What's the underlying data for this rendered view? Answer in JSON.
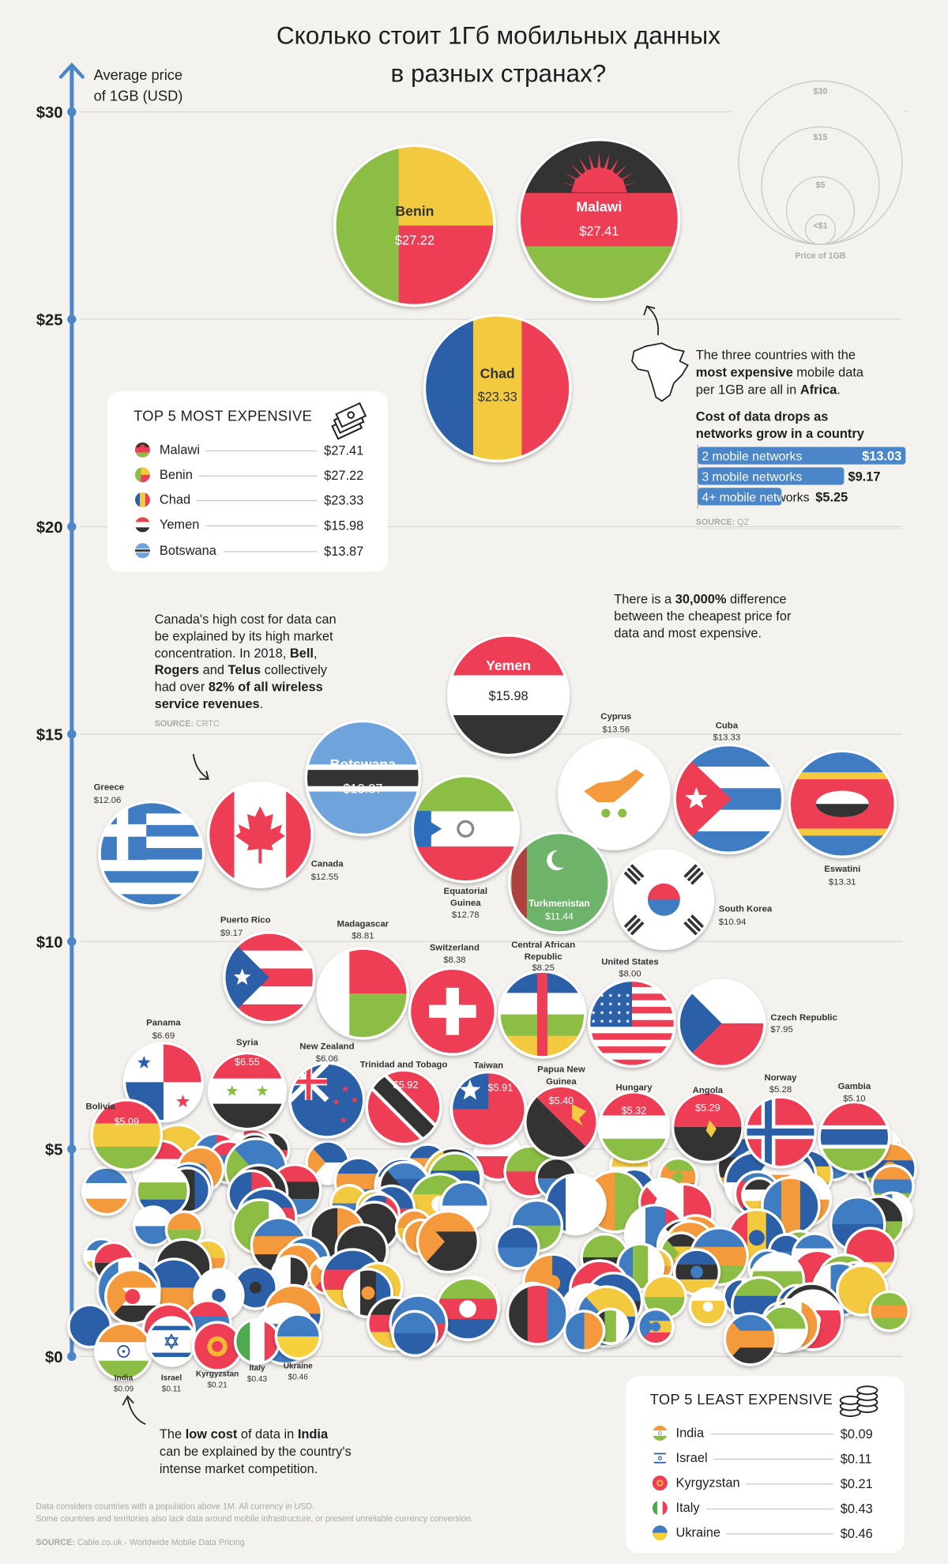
{
  "title_lines": [
    "Сколько стоит 1Гб мобильных данных",
    "в разных странах?"
  ],
  "axis": {
    "label_lines": [
      "Average price",
      "of 1GB (USD)"
    ],
    "ticks": [
      "$30",
      "$25",
      "$20",
      "$15",
      "$10",
      "$5",
      "$0"
    ]
  },
  "size_legend": {
    "labels": [
      "$30",
      "$15",
      "$5",
      "<$1"
    ],
    "caption": "Price of 1GB"
  },
  "top_expensive": {
    "title": "TOP 5 MOST EXPENSIVE",
    "rows": [
      {
        "country": "Malawi",
        "price": "$27.41",
        "flag": "malawi"
      },
      {
        "country": "Benin",
        "price": "$27.22",
        "flag": "benin"
      },
      {
        "country": "Chad",
        "price": "$23.33",
        "flag": "chad"
      },
      {
        "country": "Yemen",
        "price": "$15.98",
        "flag": "yemen"
      },
      {
        "country": "Botswana",
        "price": "$13.87",
        "flag": "botswana"
      }
    ]
  },
  "top_cheapest": {
    "title": "TOP 5 LEAST EXPENSIVE",
    "rows": [
      {
        "country": "India",
        "price": "$0.09",
        "flag": "india"
      },
      {
        "country": "Israel",
        "price": "$0.11",
        "flag": "israel"
      },
      {
        "country": "Kyrgyzstan",
        "price": "$0.21",
        "flag": "kyrgyzstan"
      },
      {
        "country": "Italy",
        "price": "$0.43",
        "flag": "italy"
      },
      {
        "country": "Ukraine",
        "price": "$0.46",
        "flag": "ukraine"
      }
    ]
  },
  "notes": {
    "africa": [
      [
        {
          "t": "The three countries with the"
        }
      ],
      [
        {
          "t": "most expensive",
          "b": true
        },
        {
          "t": " mobile data"
        }
      ],
      [
        {
          "t": "per 1GB are all in "
        },
        {
          "t": "Africa",
          "b": true
        },
        {
          "t": "."
        }
      ]
    ],
    "difference": [
      [
        {
          "t": "There is a "
        },
        {
          "t": "30,000%",
          "b": true
        },
        {
          "t": " difference"
        }
      ],
      [
        {
          "t": "between the cheapest price for"
        }
      ],
      [
        {
          "t": "data and most expensive."
        }
      ]
    ],
    "canada": [
      [
        {
          "t": "Canada's high cost for data can"
        }
      ],
      [
        {
          "t": "be explained by its high market"
        }
      ],
      [
        {
          "t": "concentration. In 2018, "
        },
        {
          "t": "Bell",
          "b": true
        },
        {
          "t": ","
        }
      ],
      [
        {
          "t": "Rogers",
          "b": true
        },
        {
          "t": " and "
        },
        {
          "t": "Telus",
          "b": true
        },
        {
          "t": " collectively"
        }
      ],
      [
        {
          "t": "had over "
        },
        {
          "t": "82% of all wireless",
          "b": true
        }
      ],
      [
        {
          "t": "service revenues",
          "b": true
        },
        {
          "t": "."
        }
      ]
    ],
    "canada_source": [
      [
        {
          "t": "SOURCE: ",
          "b": true
        },
        {
          "t": "CRTC"
        }
      ]
    ],
    "india": [
      [
        {
          "t": "The "
        },
        {
          "t": "low cost",
          "b": true
        },
        {
          "t": " of data in "
        },
        {
          "t": "India",
          "b": true
        }
      ],
      [
        {
          "t": "can be explained by the country's"
        }
      ],
      [
        {
          "t": "intense market competition."
        }
      ]
    ]
  },
  "networks": {
    "title_lines": [
      "Cost of data drops as",
      "networks grow in a country"
    ],
    "bars": [
      {
        "label": "2 mobile networks",
        "value": "$13.03",
        "amount": 13.03
      },
      {
        "label": "3 mobile networks",
        "value": "$9.17",
        "amount": 9.17
      },
      {
        "label": "4+ mobile networks",
        "value": "$5.25",
        "amount": 5.25
      }
    ],
    "source": [
      [
        {
          "t": "SOURCE: ",
          "b": true
        },
        {
          "t": "QZ"
        }
      ]
    ],
    "bar_color": "#4a86c8"
  },
  "footnote": [
    [
      {
        "t": "Data considers countries with a population above 1M. All currency in USD."
      }
    ],
    [
      {
        "t": "Some countries and territories also lack data around mobile infrastructure, or present unreliable currency conversion."
      }
    ]
  ],
  "source": [
    [
      {
        "t": "SOURCE: ",
        "b": true
      },
      {
        "t": "Cable.co.uk - Worldwide Mobile Data Pricing"
      }
    ]
  ],
  "colors": {
    "axis": "#4a86c8",
    "background": "#f3f2ef",
    "grid": "#d9d8d4"
  },
  "chart_data": {
    "type": "scatter",
    "title": "Сколько стоит 1Гб мобильных данных в разных странах?",
    "ylabel": "Average price of 1GB (USD)",
    "ylim": [
      0,
      30
    ],
    "yticks": [
      0,
      5,
      10,
      15,
      20,
      25,
      30
    ],
    "grid": true,
    "points": [
      {
        "country": "Malawi",
        "name_lines": [
          "Malawi"
        ],
        "value": 27.41,
        "label": "$27.41"
      },
      {
        "country": "Benin",
        "name_lines": [
          "Benin"
        ],
        "value": 27.22,
        "label": "$27.22"
      },
      {
        "country": "Chad",
        "name_lines": [
          "Chad"
        ],
        "value": 23.33,
        "label": "$23.33"
      },
      {
        "country": "Yemen",
        "name_lines": [
          "Yemen"
        ],
        "value": 15.98,
        "label": "$15.98"
      },
      {
        "country": "Botswana",
        "name_lines": [
          "Botswana"
        ],
        "value": 13.87,
        "label": "$13.87"
      },
      {
        "country": "Cyprus",
        "name_lines": [
          "Cyprus"
        ],
        "value": 13.56,
        "label": "$13.56"
      },
      {
        "country": "Cuba",
        "name_lines": [
          "Cuba"
        ],
        "value": 13.33,
        "label": "$13.33"
      },
      {
        "country": "Eswatini",
        "name_lines": [
          "Eswatini"
        ],
        "value": 13.31,
        "label": "$13.31"
      },
      {
        "country": "Greece",
        "name_lines": [
          "Greece"
        ],
        "value": 12.06,
        "label": "$12.06"
      },
      {
        "country": "Canada",
        "name_lines": [
          "Canada"
        ],
        "value": 12.55,
        "label": "$12.55"
      },
      {
        "country": "Equatorial Guinea",
        "name_lines": [
          "Equatorial",
          "Guinea"
        ],
        "value": 12.78,
        "label": "$12.78"
      },
      {
        "country": "Turkmenistan",
        "name_lines": [
          "Turkmenistan"
        ],
        "value": 11.44,
        "label": "$11.44"
      },
      {
        "country": "South Korea",
        "name_lines": [
          "South Korea"
        ],
        "value": 10.94,
        "label": "$10.94"
      },
      {
        "country": "Puerto Rico",
        "name_lines": [
          "Puerto Rico"
        ],
        "value": 9.17,
        "label": "$9.17"
      },
      {
        "country": "Madagascar",
        "name_lines": [
          "Madagascar"
        ],
        "value": 8.81,
        "label": "$8.81"
      },
      {
        "country": "Switzerland",
        "name_lines": [
          "Switzerland"
        ],
        "value": 8.38,
        "label": "$8.38"
      },
      {
        "country": "Central African Republic",
        "name_lines": [
          "Central African",
          "Republic"
        ],
        "value": 8.25,
        "label": "$8.25"
      },
      {
        "country": "United States",
        "name_lines": [
          "United States"
        ],
        "value": 8.0,
        "label": "$8.00"
      },
      {
        "country": "Czech Republic",
        "name_lines": [
          "Czech Republic"
        ],
        "value": 7.95,
        "label": "$7.95"
      },
      {
        "country": "Panama",
        "name_lines": [
          "Panama"
        ],
        "value": 6.69,
        "label": "$6.69"
      },
      {
        "country": "Syria",
        "name_lines": [
          "Syria"
        ],
        "value": 6.55,
        "label": "$6.55"
      },
      {
        "country": "New Zealand",
        "name_lines": [
          "New Zealand"
        ],
        "value": 6.06,
        "label": "$6.06"
      },
      {
        "country": "Trinidad and Tobago",
        "name_lines": [
          "Trinidad and Tobago"
        ],
        "value": 5.92,
        "label": "$5.92"
      },
      {
        "country": "Taiwan",
        "name_lines": [
          "Taiwan"
        ],
        "value": 5.91,
        "label": "$5.91"
      },
      {
        "country": "Papua New Guinea",
        "name_lines": [
          "Papua New",
          "Guinea"
        ],
        "value": 5.4,
        "label": "$5.40"
      },
      {
        "country": "Hungary",
        "name_lines": [
          "Hungary"
        ],
        "value": 5.32,
        "label": "$5.32"
      },
      {
        "country": "Angola",
        "name_lines": [
          "Angola"
        ],
        "value": 5.29,
        "label": "$5.29"
      },
      {
        "country": "Norway",
        "name_lines": [
          "Norway"
        ],
        "value": 5.28,
        "label": "$5.28"
      },
      {
        "country": "Gambia",
        "name_lines": [
          "Gambia"
        ],
        "value": 5.1,
        "label": "$5.10"
      },
      {
        "country": "Bolivia",
        "name_lines": [
          "Bolivia"
        ],
        "value": 5.09,
        "label": "$5.09"
      },
      {
        "country": "India",
        "name_lines": [
          "India"
        ],
        "value": 0.09,
        "label": "$0.09"
      },
      {
        "country": "Israel",
        "name_lines": [
          "Israel"
        ],
        "value": 0.11,
        "label": "$0.11"
      },
      {
        "country": "Kyrgyzstan",
        "name_lines": [
          "Kyrgyzstan"
        ],
        "value": 0.21,
        "label": "$0.21"
      },
      {
        "country": "Italy",
        "name_lines": [
          "Italy"
        ],
        "value": 0.43,
        "label": "$0.43"
      },
      {
        "country": "Ukraine",
        "name_lines": [
          "Ukraine"
        ],
        "value": 0.46,
        "label": "$0.46"
      }
    ]
  }
}
